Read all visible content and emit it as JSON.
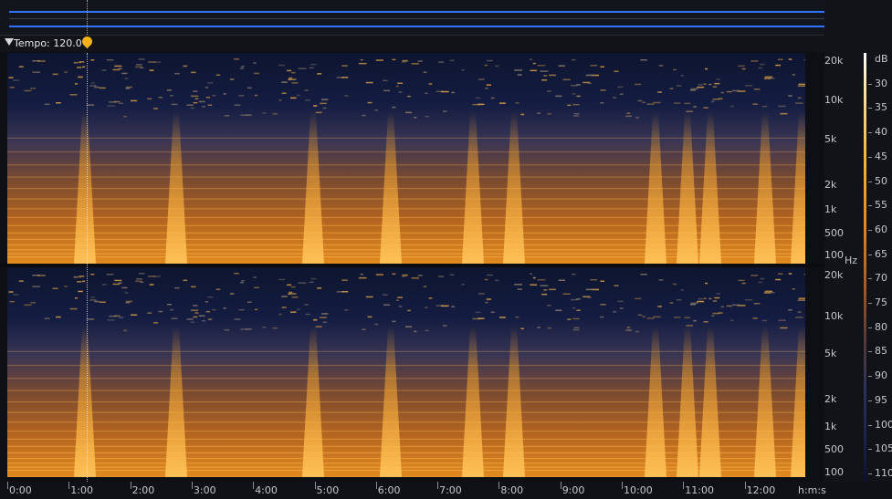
{
  "tempo": {
    "label": "Tempo: 120.0"
  },
  "frequency_labels_top": [
    "20k",
    "10k",
    "5k",
    "2k",
    "1k",
    "500",
    "100",
    "Hz"
  ],
  "frequency_labels_bottom": [
    "20k",
    "10k",
    "5k",
    "2k",
    "1k",
    "500",
    "100"
  ],
  "db_labels": [
    "dB",
    "30",
    "35",
    "40",
    "45",
    "50",
    "55",
    "60",
    "65",
    "70",
    "75",
    "80",
    "85",
    "90",
    "95",
    "100",
    "105",
    "110"
  ],
  "time_labels": [
    "0:00",
    "1:00",
    "2:00",
    "3:00",
    "4:00",
    "5:00",
    "6:00",
    "7:00",
    "8:00",
    "9:00",
    "10:00",
    "11:00",
    "12:00",
    "h:m:s"
  ],
  "colors": {
    "waveform": "#2f74ff",
    "marker": "#f4b21a",
    "spectrum_hot": "#f7a82a",
    "spectrum_cold": "#1a234c"
  },
  "icons": {
    "tempo_marker": "tempo-marker-icon",
    "collapse": "triangle-down-icon"
  }
}
